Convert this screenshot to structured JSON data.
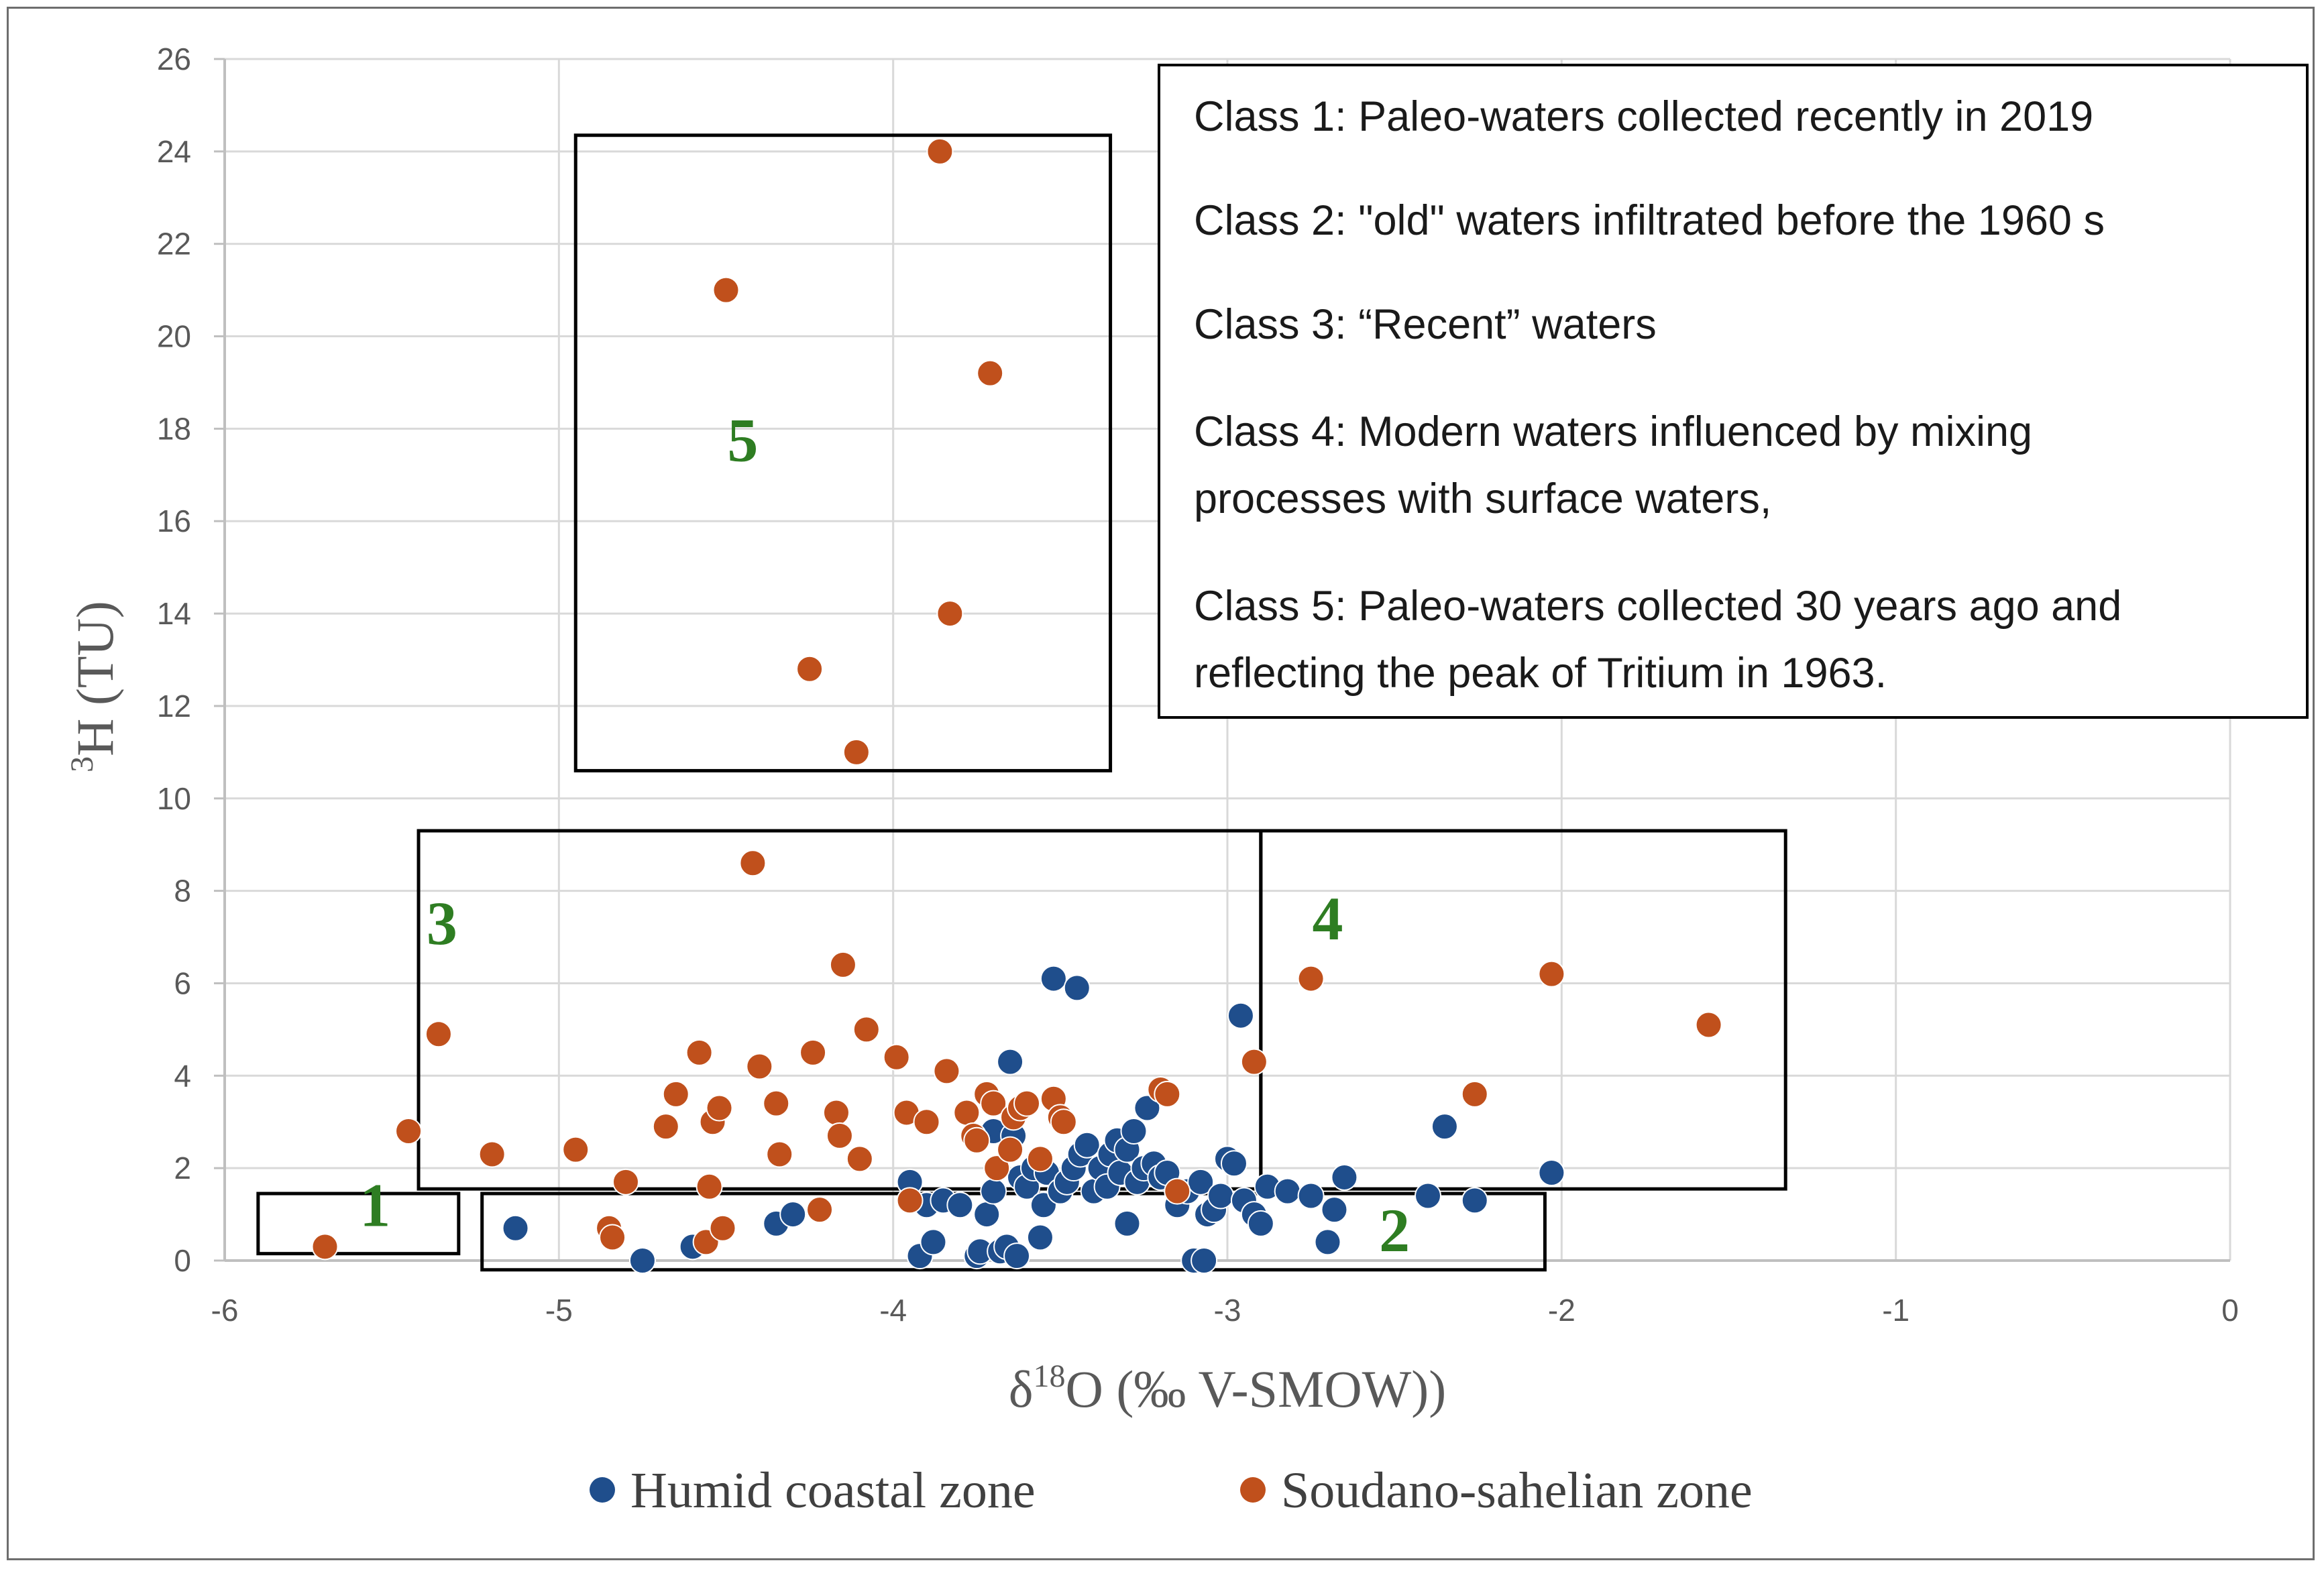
{
  "chart_data": {
    "type": "scatter",
    "xlabel_main": "δ",
    "xlabel_sup": "18",
    "xlabel_rest": "O (‰ V-SMOW))",
    "ylabel_sup": "3",
    "ylabel_rest": "H (TU)",
    "xlim": [
      -6,
      0
    ],
    "ylim": [
      0,
      26
    ],
    "x_ticks": [
      -6,
      -5,
      -4,
      -3,
      -2,
      -1,
      0
    ],
    "y_ticks": [
      0,
      2,
      4,
      6,
      8,
      10,
      12,
      14,
      16,
      18,
      20,
      22,
      24,
      26
    ],
    "grid": true,
    "legend_position": "bottom",
    "series": [
      {
        "name": "Humid coastal zone",
        "color": "#1f4e8c",
        "points": [
          [
            -5.13,
            0.7
          ],
          [
            -4.75,
            0.0
          ],
          [
            -4.6,
            0.3
          ],
          [
            -4.35,
            0.8
          ],
          [
            -4.3,
            1.0
          ],
          [
            -3.95,
            1.7
          ],
          [
            -3.92,
            0.1
          ],
          [
            -3.9,
            1.2
          ],
          [
            -3.88,
            0.4
          ],
          [
            -3.85,
            1.3
          ],
          [
            -3.8,
            1.2
          ],
          [
            -3.75,
            0.1
          ],
          [
            -3.74,
            0.2
          ],
          [
            -3.72,
            1.0
          ],
          [
            -3.7,
            1.5
          ],
          [
            -3.7,
            2.8
          ],
          [
            -3.68,
            0.2
          ],
          [
            -3.66,
            0.3
          ],
          [
            -3.65,
            4.3
          ],
          [
            -3.64,
            2.7
          ],
          [
            -3.63,
            0.1
          ],
          [
            -3.62,
            1.8
          ],
          [
            -3.6,
            1.6
          ],
          [
            -3.58,
            2.0
          ],
          [
            -3.56,
            0.5
          ],
          [
            -3.55,
            1.2
          ],
          [
            -3.54,
            1.9
          ],
          [
            -3.52,
            6.1
          ],
          [
            -3.5,
            1.5
          ],
          [
            -3.48,
            1.7
          ],
          [
            -3.46,
            2.0
          ],
          [
            -3.45,
            5.9
          ],
          [
            -3.44,
            2.3
          ],
          [
            -3.42,
            2.5
          ],
          [
            -3.4,
            1.5
          ],
          [
            -3.38,
            2.0
          ],
          [
            -3.36,
            1.6
          ],
          [
            -3.35,
            2.3
          ],
          [
            -3.33,
            2.6
          ],
          [
            -3.32,
            1.9
          ],
          [
            -3.3,
            0.8
          ],
          [
            -3.3,
            2.4
          ],
          [
            -3.28,
            2.8
          ],
          [
            -3.27,
            1.7
          ],
          [
            -3.25,
            2.0
          ],
          [
            -3.24,
            3.3
          ],
          [
            -3.22,
            2.1
          ],
          [
            -3.2,
            1.8
          ],
          [
            -3.18,
            1.9
          ],
          [
            -3.15,
            1.2
          ],
          [
            -3.12,
            1.5
          ],
          [
            -3.1,
            0.0
          ],
          [
            -3.08,
            1.7
          ],
          [
            -3.07,
            0.0
          ],
          [
            -3.06,
            1.0
          ],
          [
            -3.04,
            1.1
          ],
          [
            -3.02,
            1.4
          ],
          [
            -3.0,
            2.2
          ],
          [
            -2.98,
            2.1
          ],
          [
            -2.96,
            5.3
          ],
          [
            -2.95,
            1.3
          ],
          [
            -2.92,
            1.0
          ],
          [
            -2.9,
            0.8
          ],
          [
            -2.88,
            1.6
          ],
          [
            -2.82,
            1.5
          ],
          [
            -2.75,
            1.4
          ],
          [
            -2.7,
            0.4
          ],
          [
            -2.68,
            1.1
          ],
          [
            -2.65,
            1.8
          ],
          [
            -2.4,
            1.4
          ],
          [
            -2.35,
            2.9
          ],
          [
            -2.26,
            1.3
          ],
          [
            -2.03,
            1.9
          ]
        ]
      },
      {
        "name": "Soudano-sahelian zone",
        "color": "#c0501c",
        "points": [
          [
            -5.7,
            0.3
          ],
          [
            -5.45,
            2.8
          ],
          [
            -5.36,
            4.9
          ],
          [
            -5.2,
            2.3
          ],
          [
            -4.95,
            2.4
          ],
          [
            -4.85,
            0.7
          ],
          [
            -4.84,
            0.5
          ],
          [
            -4.8,
            1.7
          ],
          [
            -4.68,
            2.9
          ],
          [
            -4.65,
            3.6
          ],
          [
            -4.58,
            4.5
          ],
          [
            -4.56,
            0.4
          ],
          [
            -4.55,
            1.6
          ],
          [
            -4.54,
            3.0
          ],
          [
            -4.52,
            3.3
          ],
          [
            -4.51,
            0.7
          ],
          [
            -4.5,
            21.0
          ],
          [
            -4.42,
            8.6
          ],
          [
            -4.4,
            4.2
          ],
          [
            -4.35,
            3.4
          ],
          [
            -4.34,
            2.3
          ],
          [
            -4.25,
            12.8
          ],
          [
            -4.24,
            4.5
          ],
          [
            -4.22,
            1.1
          ],
          [
            -4.17,
            3.2
          ],
          [
            -4.16,
            2.7
          ],
          [
            -4.15,
            6.4
          ],
          [
            -4.11,
            11.0
          ],
          [
            -4.1,
            2.2
          ],
          [
            -4.08,
            5.0
          ],
          [
            -3.99,
            4.4
          ],
          [
            -3.96,
            3.2
          ],
          [
            -3.95,
            1.3
          ],
          [
            -3.9,
            3.0
          ],
          [
            -3.86,
            24.0
          ],
          [
            -3.84,
            4.1
          ],
          [
            -3.83,
            14.0
          ],
          [
            -3.78,
            3.2
          ],
          [
            -3.76,
            2.7
          ],
          [
            -3.75,
            2.6
          ],
          [
            -3.72,
            3.6
          ],
          [
            -3.71,
            19.2
          ],
          [
            -3.7,
            3.4
          ],
          [
            -3.69,
            2.0
          ],
          [
            -3.65,
            2.4
          ],
          [
            -3.64,
            3.1
          ],
          [
            -3.62,
            3.3
          ],
          [
            -3.6,
            3.4
          ],
          [
            -3.56,
            2.2
          ],
          [
            -3.52,
            3.5
          ],
          [
            -3.5,
            3.1
          ],
          [
            -3.49,
            3.0
          ],
          [
            -3.2,
            3.7
          ],
          [
            -3.18,
            3.6
          ],
          [
            -3.15,
            1.5
          ],
          [
            -2.92,
            4.3
          ],
          [
            -2.75,
            6.1
          ],
          [
            -2.26,
            3.6
          ],
          [
            -2.03,
            6.2
          ],
          [
            -1.56,
            5.1
          ]
        ]
      }
    ],
    "class_boxes": [
      {
        "label": "1",
        "x0": -5.9,
        "x1": -5.3,
        "y0": 0.15,
        "y1": 1.45,
        "label_x": -5.55,
        "label_y": 0.75
      },
      {
        "label": "2",
        "x0": -5.23,
        "x1": -2.05,
        "y0": -0.2,
        "y1": 1.45,
        "label_x": -2.5,
        "label_y": 0.2
      },
      {
        "label": "3",
        "x0": -5.42,
        "x1": -2.9,
        "y0": 1.55,
        "y1": 9.3,
        "label_x": -5.35,
        "label_y": 6.85
      },
      {
        "label": "4",
        "x0": -2.9,
        "x1": -1.33,
        "y0": 1.55,
        "y1": 9.3,
        "label_x": -2.7,
        "label_y": 6.95
      },
      {
        "label": "5",
        "x0": -4.95,
        "x1": -3.35,
        "y0": 10.6,
        "y1": 24.35,
        "label_x": -4.45,
        "label_y": 17.3
      }
    ],
    "annotation_lines": [
      "Class 1: Paleo-waters collected recently in 2019",
      "Class 2: \"old\" waters infiltrated before the 1960 s",
      "Class 3: “Recent” waters",
      "Class 4: Modern waters influenced by mixing",
      "processes with surface waters,",
      "Class 5: Paleo-waters collected 30 years ago and",
      "reflecting the peak of Tritium in 1963."
    ]
  }
}
